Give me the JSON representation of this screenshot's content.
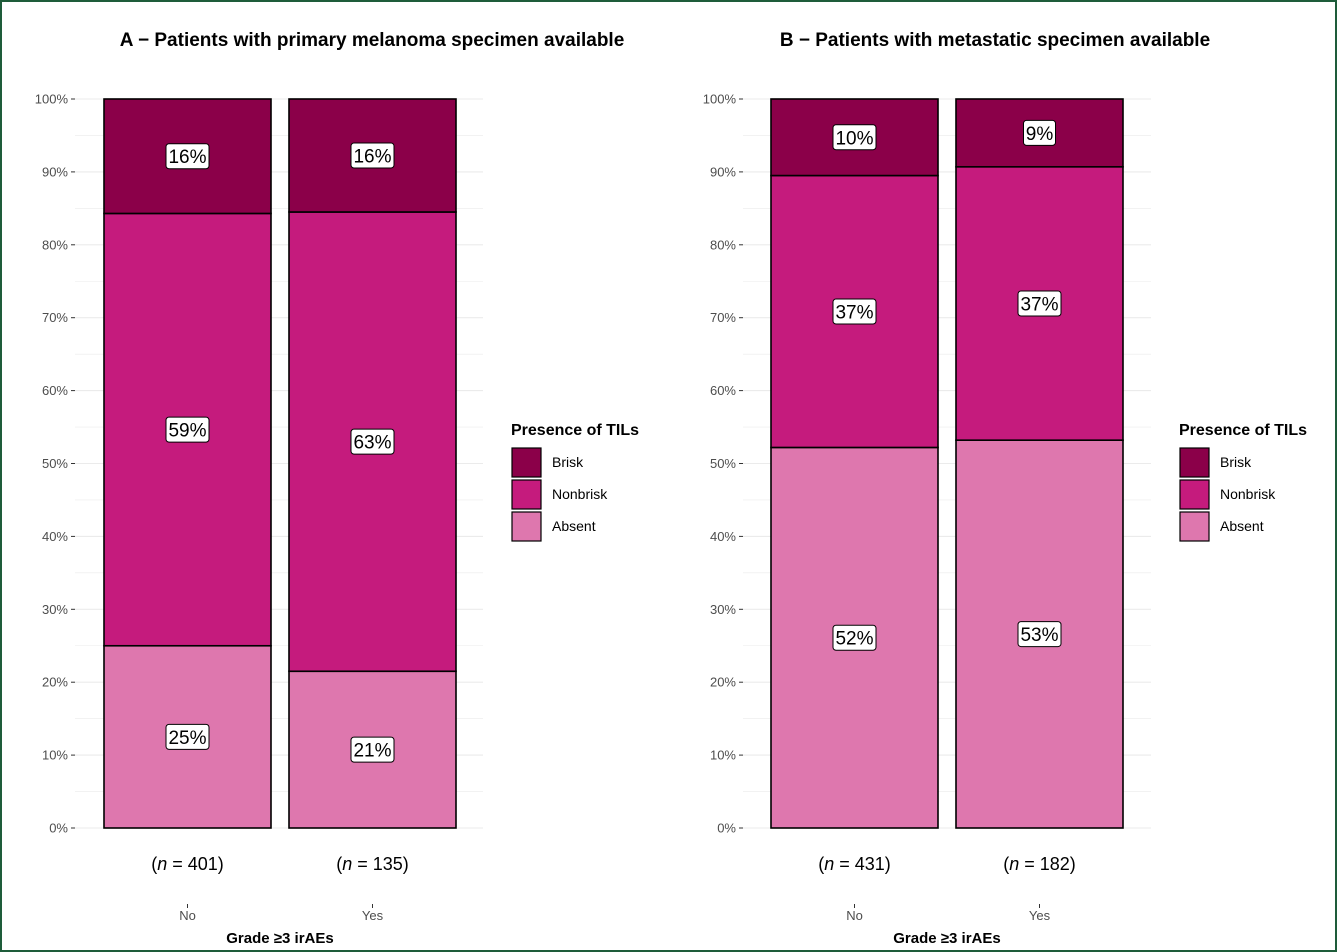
{
  "chart_data": [
    {
      "type": "bar",
      "stacked": true,
      "title": "A − Patients with primary melanoma specimen available",
      "xlabel": "Grade ≥3 irAEs",
      "ylabel": "",
      "ylim": [
        0,
        100
      ],
      "y_ticks": [
        "0%",
        "10%",
        "20%",
        "30%",
        "40%",
        "50%",
        "60%",
        "70%",
        "80%",
        "90%",
        "100%"
      ],
      "categories": [
        "No",
        "Yes"
      ],
      "n_labels": [
        {
          "pre": "(",
          "n": "n",
          "post": " = 401)"
        },
        {
          "pre": "(",
          "n": "n",
          "post": " = 135)"
        }
      ],
      "series": [
        {
          "name": "Absent",
          "values": [
            25,
            21.5
          ],
          "labels": [
            "25%",
            "21%"
          ]
        },
        {
          "name": "Nonbrisk",
          "values": [
            59.3,
            63
          ],
          "labels": [
            "59%",
            "63%"
          ]
        },
        {
          "name": "Brisk",
          "values": [
            15.7,
            15.5
          ],
          "labels": [
            "16%",
            "16%"
          ]
        }
      ],
      "legend_title": "Presence of TILs",
      "legend_items": [
        "Brisk",
        "Nonbrisk",
        "Absent"
      ],
      "legend_position": "right",
      "grid": true
    },
    {
      "type": "bar",
      "stacked": true,
      "title": "B − Patients with metastatic specimen available",
      "xlabel": "Grade ≥3 irAEs",
      "ylabel": "",
      "ylim": [
        0,
        100
      ],
      "y_ticks": [
        "0%",
        "10%",
        "20%",
        "30%",
        "40%",
        "50%",
        "60%",
        "70%",
        "80%",
        "90%",
        "100%"
      ],
      "categories": [
        "No",
        "Yes"
      ],
      "n_labels": [
        {
          "pre": "(",
          "n": "n",
          "post": " = 431)"
        },
        {
          "pre": "(",
          "n": "n",
          "post": " = 182)"
        }
      ],
      "series": [
        {
          "name": "Absent",
          "values": [
            52.2,
            53.2
          ],
          "labels": [
            "52%",
            "53%"
          ]
        },
        {
          "name": "Nonbrisk",
          "values": [
            37.3,
            37.5
          ],
          "labels": [
            "37%",
            "37%"
          ]
        },
        {
          "name": "Brisk",
          "values": [
            10.5,
            9.3
          ],
          "labels": [
            "10%",
            "9%"
          ]
        }
      ],
      "legend_title": "Presence of TILs",
      "legend_items": [
        "Brisk",
        "Nonbrisk",
        "Absent"
      ],
      "legend_position": "right",
      "grid": true
    }
  ],
  "colors": {
    "Brisk": "#8b0049",
    "Nonbrisk": "#c51b7d",
    "Absent": "#de77ae",
    "border": "#1e5c3a",
    "grid": "#ebebeb"
  }
}
